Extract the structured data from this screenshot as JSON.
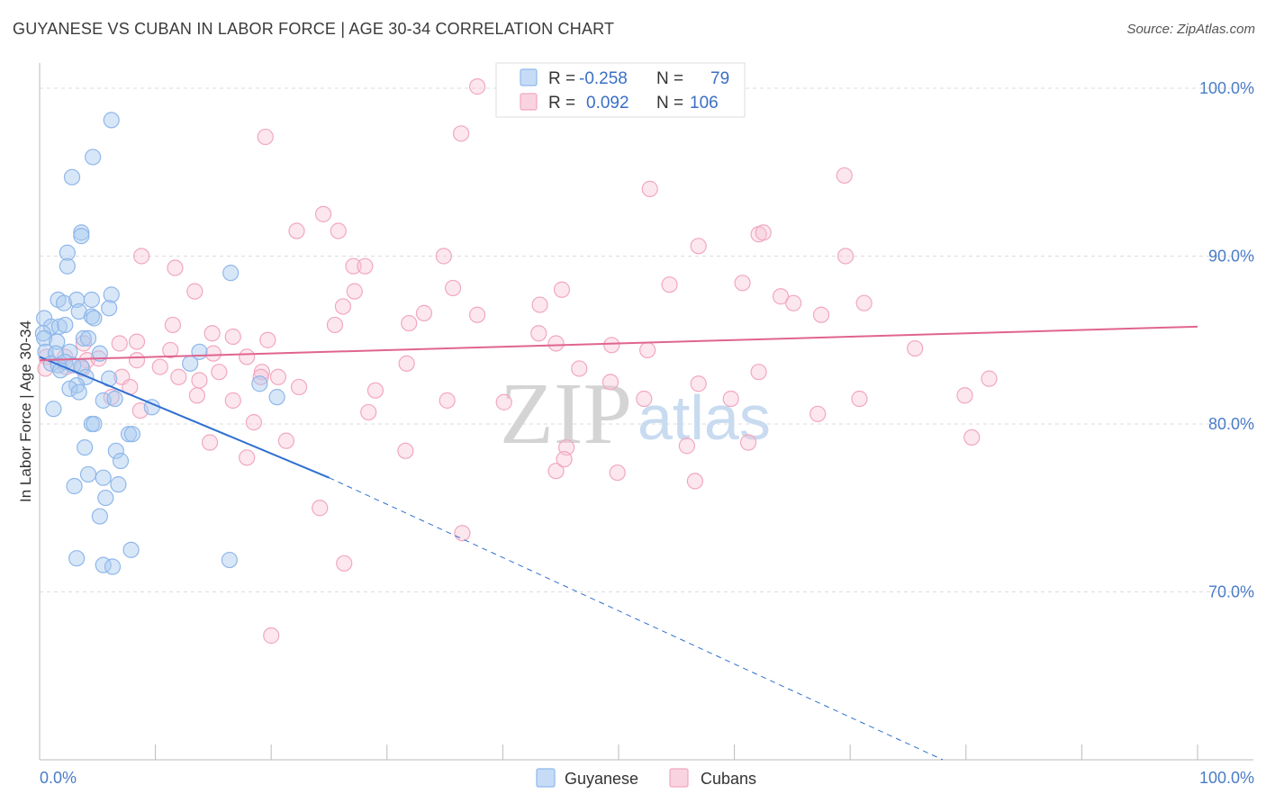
{
  "title": "GUYANESE VS CUBAN IN LABOR FORCE | AGE 30-34 CORRELATION CHART",
  "source": "Source: ZipAtlas.com",
  "watermark": {
    "zip": "ZIP",
    "atlas": "atlas"
  },
  "legend": {
    "r_label": "R =",
    "n_label": "N =",
    "rows": [
      {
        "r": "-0.258",
        "n": "79",
        "color": "#8fb7ea",
        "fill": "#c6dcf6"
      },
      {
        "r": "0.092",
        "n": "106",
        "color": "#f2a7bf",
        "fill": "#f9d4e0"
      }
    ]
  },
  "bottom_legend": [
    {
      "label": "Guyanese",
      "stroke": "#8fb7ea",
      "fill": "#c6dcf6"
    },
    {
      "label": "Cubans",
      "stroke": "#f2a7bf",
      "fill": "#f9d4e0"
    }
  ],
  "chart_data": {
    "type": "scatter",
    "title": "GUYANESE VS CUBAN IN LABOR FORCE | AGE 30-34 CORRELATION CHART",
    "xlabel": "",
    "ylabel": "In Labor Force | Age 30-34",
    "xlim": [
      0,
      100
    ],
    "ylim": [
      60,
      101.5
    ],
    "x_tick_labels": [
      {
        "value": 0,
        "label": "0.0%"
      },
      {
        "value": 100,
        "label": "100.0%"
      }
    ],
    "y_tick_labels": [
      {
        "value": 100,
        "label": "100.0%"
      },
      {
        "value": 90,
        "label": "90.0%"
      },
      {
        "value": 80,
        "label": "80.0%"
      },
      {
        "value": 70,
        "label": "70.0%"
      }
    ],
    "grid": "horizontal dashed",
    "legend_position": "top-center",
    "series": [
      {
        "name": "Guyanese",
        "marker_color": "#8fb7ea",
        "trend_color": "#2f6fd0",
        "trend": {
          "x0": 0.0,
          "y0": 84.0,
          "x1": 25.0,
          "y1": 76.8,
          "dash_to_x": 78.0,
          "dash_to_y": 60.0
        },
        "points": [
          [
            6.2,
            98.1
          ],
          [
            4.6,
            95.9
          ],
          [
            2.8,
            94.7
          ],
          [
            3.6,
            91.4
          ],
          [
            3.6,
            91.2
          ],
          [
            2.4,
            90.2
          ],
          [
            2.4,
            89.4
          ],
          [
            16.5,
            89.0
          ],
          [
            1.6,
            87.4
          ],
          [
            2.1,
            87.2
          ],
          [
            3.2,
            87.4
          ],
          [
            4.5,
            87.4
          ],
          [
            6.2,
            87.7
          ],
          [
            3.4,
            86.7
          ],
          [
            6.0,
            86.9
          ],
          [
            0.4,
            86.3
          ],
          [
            1.0,
            85.8
          ],
          [
            1.7,
            85.8
          ],
          [
            2.2,
            85.9
          ],
          [
            4.5,
            86.4
          ],
          [
            4.7,
            86.3
          ],
          [
            0.3,
            85.4
          ],
          [
            0.4,
            85.1
          ],
          [
            1.5,
            84.9
          ],
          [
            3.8,
            85.1
          ],
          [
            4.2,
            85.1
          ],
          [
            0.5,
            84.3
          ],
          [
            1.4,
            84.2
          ],
          [
            2.6,
            84.3
          ],
          [
            5.2,
            84.2
          ],
          [
            13.8,
            84.3
          ],
          [
            1.0,
            83.6
          ],
          [
            1.6,
            83.5
          ],
          [
            2.2,
            83.7
          ],
          [
            2.9,
            83.5
          ],
          [
            13.0,
            83.6
          ],
          [
            1.8,
            83.2
          ],
          [
            3.6,
            83.4
          ],
          [
            4.0,
            82.8
          ],
          [
            6.0,
            82.7
          ],
          [
            3.2,
            82.3
          ],
          [
            19.0,
            82.4
          ],
          [
            2.6,
            82.1
          ],
          [
            3.4,
            81.9
          ],
          [
            5.5,
            81.4
          ],
          [
            6.5,
            81.5
          ],
          [
            20.5,
            81.6
          ],
          [
            1.2,
            80.9
          ],
          [
            9.7,
            81.0
          ],
          [
            4.5,
            80.0
          ],
          [
            4.7,
            80.0
          ],
          [
            7.7,
            79.4
          ],
          [
            8.0,
            79.4
          ],
          [
            3.9,
            78.6
          ],
          [
            6.6,
            78.4
          ],
          [
            7.0,
            77.8
          ],
          [
            4.2,
            77.0
          ],
          [
            5.5,
            76.8
          ],
          [
            6.8,
            76.4
          ],
          [
            3.0,
            76.3
          ],
          [
            5.7,
            75.6
          ],
          [
            5.2,
            74.5
          ],
          [
            7.9,
            72.5
          ],
          [
            3.2,
            72.0
          ],
          [
            5.5,
            71.6
          ],
          [
            6.3,
            71.5
          ],
          [
            16.4,
            71.9
          ]
        ]
      },
      {
        "name": "Cubans",
        "marker_color": "#f2a7bf",
        "trend_color": "#e0648f",
        "trend": {
          "x0": 0.0,
          "y0": 83.8,
          "x1": 100.0,
          "y1": 85.8
        },
        "points": [
          [
            37.8,
            100.1
          ],
          [
            36.4,
            97.3
          ],
          [
            19.5,
            97.1
          ],
          [
            52.7,
            94.0
          ],
          [
            69.5,
            94.8
          ],
          [
            24.5,
            92.5
          ],
          [
            22.2,
            91.5
          ],
          [
            25.8,
            91.5
          ],
          [
            62.1,
            91.3
          ],
          [
            62.5,
            91.4
          ],
          [
            8.8,
            90.0
          ],
          [
            34.9,
            90.0
          ],
          [
            56.9,
            90.6
          ],
          [
            69.6,
            90.0
          ],
          [
            11.7,
            89.3
          ],
          [
            27.1,
            89.4
          ],
          [
            28.1,
            89.4
          ],
          [
            13.4,
            87.9
          ],
          [
            27.2,
            87.9
          ],
          [
            35.7,
            88.1
          ],
          [
            45.1,
            88.0
          ],
          [
            54.4,
            88.3
          ],
          [
            60.7,
            88.4
          ],
          [
            64.0,
            87.6
          ],
          [
            26.2,
            87.0
          ],
          [
            43.2,
            87.1
          ],
          [
            65.1,
            87.2
          ],
          [
            71.2,
            87.2
          ],
          [
            33.2,
            86.6
          ],
          [
            37.8,
            86.5
          ],
          [
            31.9,
            86.0
          ],
          [
            25.5,
            85.9
          ],
          [
            67.5,
            86.5
          ],
          [
            11.5,
            85.9
          ],
          [
            14.9,
            85.4
          ],
          [
            16.7,
            85.2
          ],
          [
            19.7,
            85.0
          ],
          [
            43.1,
            85.4
          ],
          [
            8.4,
            84.9
          ],
          [
            44.6,
            84.8
          ],
          [
            3.8,
            84.8
          ],
          [
            6.9,
            84.8
          ],
          [
            11.3,
            84.4
          ],
          [
            15.0,
            84.2
          ],
          [
            17.9,
            84.0
          ],
          [
            49.4,
            84.7
          ],
          [
            52.5,
            84.4
          ],
          [
            75.6,
            84.5
          ],
          [
            0.6,
            84.0
          ],
          [
            2.2,
            84.0
          ],
          [
            4.1,
            83.8
          ],
          [
            5.1,
            83.9
          ],
          [
            8.4,
            83.8
          ],
          [
            10.4,
            83.4
          ],
          [
            15.5,
            83.1
          ],
          [
            19.2,
            83.1
          ],
          [
            31.7,
            83.6
          ],
          [
            46.6,
            83.3
          ],
          [
            62.1,
            83.1
          ],
          [
            0.5,
            83.3
          ],
          [
            2.3,
            83.4
          ],
          [
            3.7,
            83.3
          ],
          [
            7.1,
            82.8
          ],
          [
            12.0,
            82.8
          ],
          [
            13.8,
            82.6
          ],
          [
            19.1,
            82.8
          ],
          [
            20.6,
            82.8
          ],
          [
            49.3,
            82.5
          ],
          [
            56.9,
            82.4
          ],
          [
            82.0,
            82.7
          ],
          [
            7.8,
            82.2
          ],
          [
            22.4,
            82.2
          ],
          [
            29.0,
            82.0
          ],
          [
            6.2,
            81.6
          ],
          [
            13.6,
            81.7
          ],
          [
            16.7,
            81.4
          ],
          [
            35.2,
            81.4
          ],
          [
            40.1,
            81.3
          ],
          [
            52.2,
            81.5
          ],
          [
            59.7,
            81.5
          ],
          [
            70.8,
            81.5
          ],
          [
            79.9,
            81.7
          ],
          [
            8.7,
            80.8
          ],
          [
            28.4,
            80.7
          ],
          [
            67.2,
            80.6
          ],
          [
            18.5,
            80.1
          ],
          [
            14.7,
            78.9
          ],
          [
            21.3,
            79.0
          ],
          [
            31.6,
            78.4
          ],
          [
            45.5,
            78.6
          ],
          [
            55.9,
            78.7
          ],
          [
            61.2,
            78.9
          ],
          [
            80.5,
            79.2
          ],
          [
            17.9,
            78.0
          ],
          [
            49.9,
            77.1
          ],
          [
            56.6,
            76.6
          ],
          [
            44.6,
            77.2
          ],
          [
            24.2,
            75.0
          ],
          [
            45.3,
            77.9
          ],
          [
            36.5,
            73.5
          ],
          [
            26.3,
            71.7
          ],
          [
            20.0,
            67.4
          ]
        ]
      }
    ]
  }
}
